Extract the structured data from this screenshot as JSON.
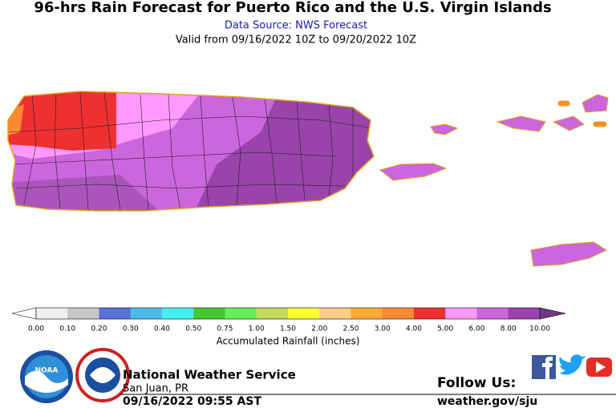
{
  "header": {
    "title": "96-hrs Rain Forecast for Puerto Rico and the U.S. Virgin Islands",
    "source": "Data Source: NWS Forecast",
    "valid": "Valid from 09/16/2022 10Z to 09/20/2022 10Z"
  },
  "legend": {
    "title": "Accumulated Rainfall (inches)",
    "labels": [
      "0.00",
      "0.10",
      "0.20",
      "0.30",
      "0.40",
      "0.50",
      "0.75",
      "1.00",
      "1.50",
      "2.00",
      "2.50",
      "3.00",
      "4.00",
      "5.00",
      "6.00",
      "8.00",
      "10.00"
    ],
    "colors": [
      "#efefef",
      "#c8c8c8",
      "#5a72d8",
      "#4cbbe8",
      "#46f0f0",
      "#44c832",
      "#66ee55",
      "#c6d85c",
      "#ffff33",
      "#ffcc88",
      "#ffaa33",
      "#ff8833",
      "#ee3030",
      "#ff99ff",
      "#cc66dd",
      "#9944aa"
    ],
    "under_color": "#ffffff",
    "over_color": "#6e3a80"
  },
  "footer": {
    "logo": "NOAA",
    "org": "National Weather Service",
    "office": "San Juan, PR",
    "issued": "09/16/2022 09:55 AST",
    "follow": "Follow Us:",
    "url": "weather.gov/sju"
  }
}
